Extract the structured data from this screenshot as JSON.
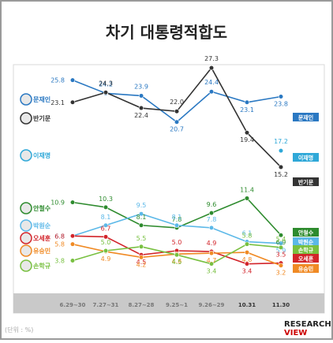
{
  "title": "차기 대통령적합도",
  "credit": "(단위 : %)",
  "logo_text": "RESEARCH VIEW",
  "chart_data": {
    "type": "line",
    "title": "차기 대통령적합도",
    "unit": "%",
    "categories": [
      "6.29~30",
      "7.27~31",
      "8.27~28",
      "9.25~1",
      "9.26~29",
      "10.31",
      "11.30"
    ],
    "grid": false,
    "legend": "left-labels",
    "series": [
      {
        "name": "문재인",
        "color": "#2a78c2",
        "values": [
          25.8,
          24.2,
          23.9,
          20.7,
          24.4,
          23.1,
          23.8
        ]
      },
      {
        "name": "반기문",
        "color": "#333333",
        "values": [
          23.1,
          24.3,
          22.4,
          22.0,
          27.3,
          19.4,
          15.2
        ]
      },
      {
        "name": "이재명",
        "color": "#2fa8d8",
        "values": [
          null,
          null,
          null,
          null,
          null,
          null,
          17.2
        ]
      },
      {
        "name": "안철수",
        "color": "#2e8b2e",
        "values": [
          10.9,
          10.3,
          8.1,
          7.8,
          9.6,
          11.4,
          6.9
        ]
      },
      {
        "name": "박원순",
        "color": "#5bb8e8",
        "values": [
          6.8,
          8.1,
          9.5,
          8.1,
          7.8,
          6.1,
          5.9
        ]
      },
      {
        "name": "오세훈",
        "color": "#d2242a",
        "values": [
          6.8,
          6.7,
          4.5,
          5.0,
          4.9,
          3.4,
          3.5
        ]
      },
      {
        "name": "유승민",
        "color": "#f08a24",
        "values": [
          5.8,
          4.9,
          4.2,
          4.6,
          4.7,
          4.8,
          3.2
        ]
      },
      {
        "name": "손학규",
        "color": "#78c040",
        "values": [
          3.8,
          5.0,
          5.5,
          4.5,
          3.4,
          5.8,
          5.4
        ]
      }
    ]
  }
}
